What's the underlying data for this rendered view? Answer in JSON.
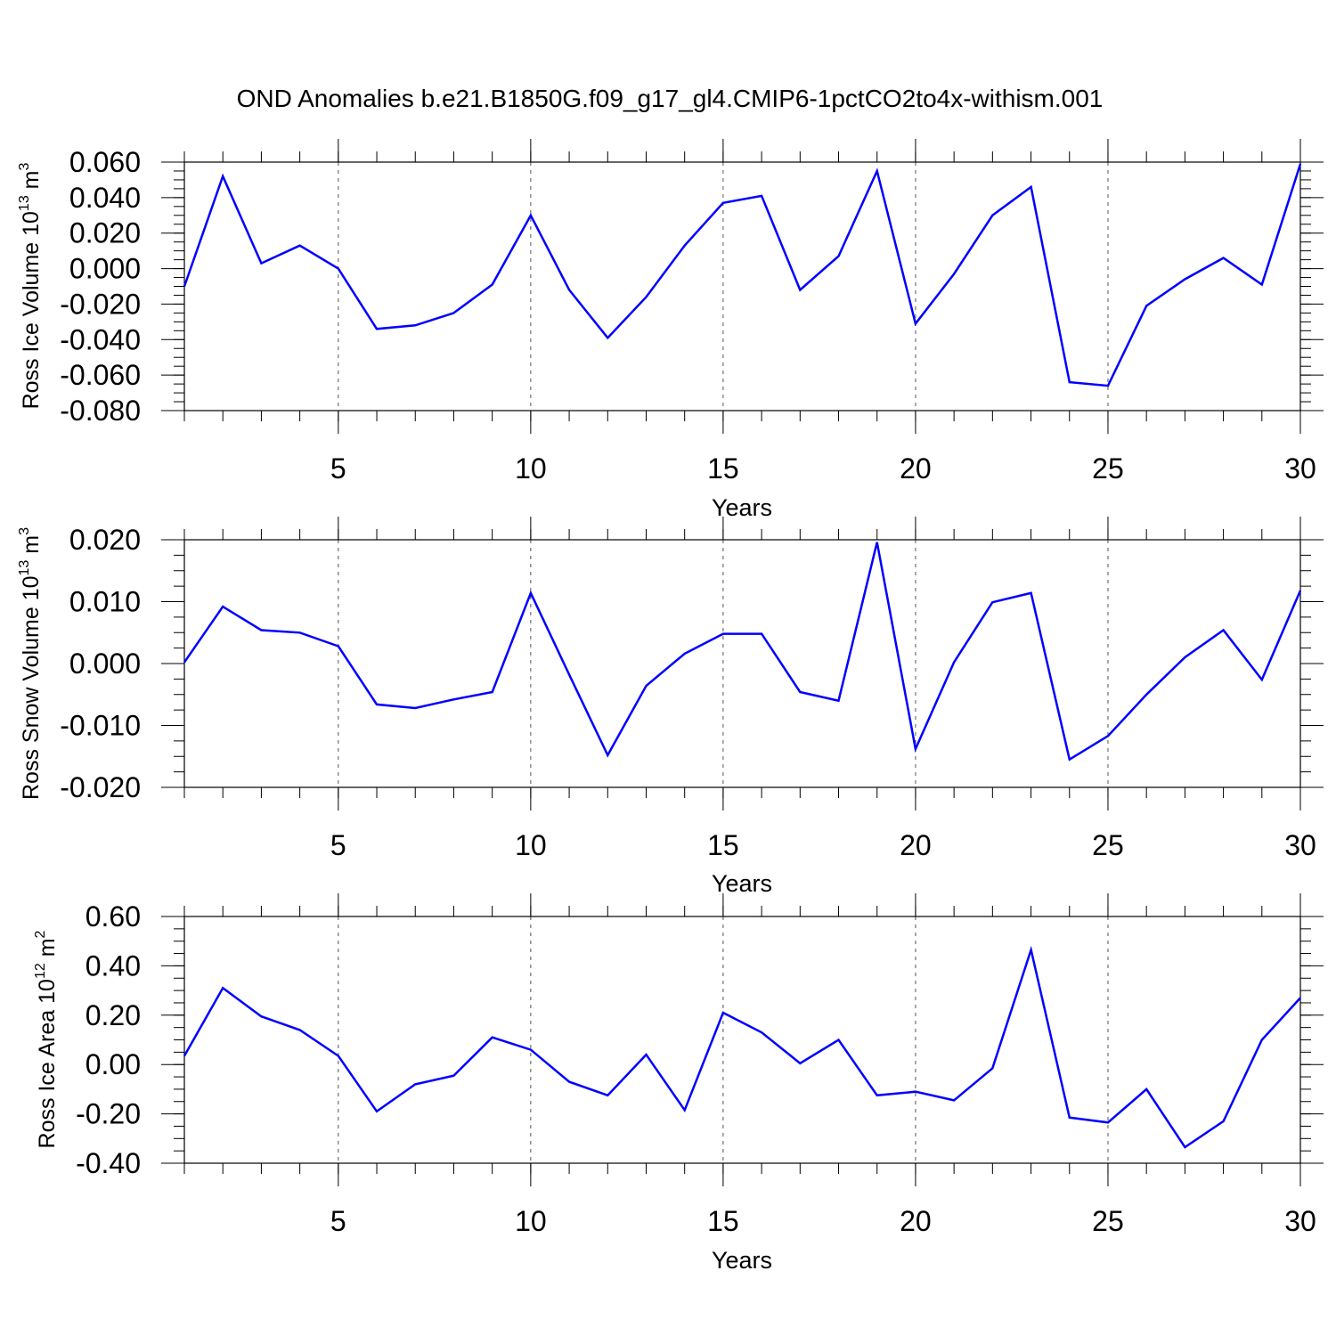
{
  "title": "OND Anomalies b.e21.B1850G.f09_g17_gl4.CMIP6-1pctCO2to4x-withism.001",
  "chart_data": [
    {
      "type": "line",
      "title": "OND Anomalies b.e21.B1850G.f09_g17_gl4.CMIP6-1pctCO2to4x-withism.001",
      "xlabel": "Years",
      "ylabel": {
        "text": "Ross Ice Volume 10",
        "exp": "13",
        "unit": " m",
        "unit_exp": "3"
      },
      "xlim": [
        1,
        30
      ],
      "ylim": [
        -0.08,
        0.06
      ],
      "x_ticks": [
        "5",
        "10",
        "15",
        "20",
        "25",
        "30"
      ],
      "y_ticks": [
        "0.060",
        "0.040",
        "0.020",
        "0.000",
        "-0.020",
        "-0.040",
        "-0.060",
        "-0.080"
      ],
      "line_color": "#0000ff",
      "grid": "dashed vertical at major x ticks",
      "series": [
        {
          "name": "Ross Ice Volume",
          "x": [
            1,
            2,
            3,
            4,
            5,
            6,
            7,
            8,
            9,
            10,
            11,
            12,
            13,
            14,
            15,
            16,
            17,
            18,
            19,
            20,
            21,
            22,
            23,
            24,
            25,
            26,
            27,
            28,
            29,
            30
          ],
          "values": [
            -0.01,
            0.052,
            0.003,
            0.013,
            0.0,
            -0.034,
            -0.032,
            -0.025,
            -0.009,
            0.03,
            -0.012,
            -0.039,
            -0.016,
            0.013,
            0.037,
            0.041,
            -0.012,
            0.007,
            0.055,
            -0.031,
            -0.003,
            0.03,
            0.046,
            -0.064,
            -0.066,
            -0.021,
            -0.006,
            0.006,
            -0.009,
            0.059
          ]
        }
      ]
    },
    {
      "type": "line",
      "xlabel": "Years",
      "ylabel": {
        "text": "Ross Snow Volume 10",
        "exp": "13",
        "unit": " m",
        "unit_exp": "3"
      },
      "xlim": [
        1,
        30
      ],
      "ylim": [
        -0.02,
        0.02
      ],
      "x_ticks": [
        "5",
        "10",
        "15",
        "20",
        "25",
        "30"
      ],
      "y_ticks": [
        "0.020",
        "0.010",
        "0.000",
        "-0.010",
        "-0.020"
      ],
      "line_color": "#0000ff",
      "grid": "dashed vertical at major x ticks",
      "series": [
        {
          "name": "Ross Snow Volume",
          "x": [
            1,
            2,
            3,
            4,
            5,
            6,
            7,
            8,
            9,
            10,
            11,
            12,
            13,
            14,
            15,
            16,
            17,
            18,
            19,
            20,
            21,
            22,
            23,
            24,
            25,
            26,
            27,
            28,
            29,
            30
          ],
          "values": [
            0.0002,
            0.0092,
            0.0054,
            0.005,
            0.0028,
            -0.0066,
            -0.0072,
            -0.0058,
            -0.0046,
            0.0114,
            -0.0018,
            -0.0148,
            -0.0036,
            0.0016,
            0.0048,
            0.0048,
            -0.0046,
            -0.006,
            0.0196,
            -0.0138,
            0.0002,
            0.0099,
            0.0114,
            -0.0155,
            -0.0117,
            -0.005,
            0.001,
            0.0054,
            -0.0026,
            0.0118
          ]
        }
      ]
    },
    {
      "type": "line",
      "xlabel": "Years",
      "ylabel": {
        "text": "Ross Ice Area 10",
        "exp": "12",
        "unit": " m",
        "unit_exp": "2"
      },
      "xlim": [
        1,
        30
      ],
      "ylim": [
        -0.4,
        0.6
      ],
      "x_ticks": [
        "5",
        "10",
        "15",
        "20",
        "25",
        "30"
      ],
      "y_ticks": [
        "0.60",
        "0.40",
        "0.20",
        "0.00",
        "-0.20",
        "-0.40"
      ],
      "line_color": "#0000ff",
      "grid": "dashed vertical at major x ticks",
      "series": [
        {
          "name": "Ross Ice Area",
          "x": [
            1,
            2,
            3,
            4,
            5,
            6,
            7,
            8,
            9,
            10,
            11,
            12,
            13,
            14,
            15,
            16,
            17,
            18,
            19,
            20,
            21,
            22,
            23,
            24,
            25,
            26,
            27,
            28,
            29,
            30
          ],
          "values": [
            0.035,
            0.31,
            0.195,
            0.14,
            0.035,
            -0.19,
            -0.08,
            -0.045,
            0.11,
            0.06,
            -0.07,
            -0.125,
            0.04,
            -0.185,
            0.21,
            0.13,
            0.005,
            0.1,
            -0.125,
            -0.11,
            -0.145,
            -0.015,
            0.465,
            -0.215,
            -0.235,
            -0.1,
            -0.335,
            -0.23,
            0.1,
            0.27
          ]
        }
      ]
    }
  ]
}
